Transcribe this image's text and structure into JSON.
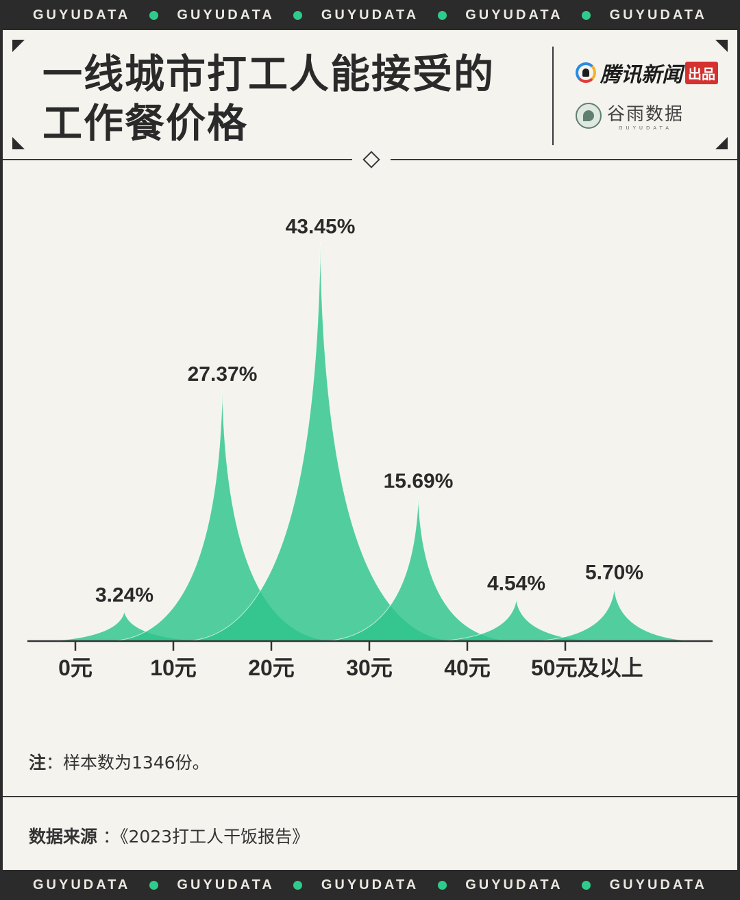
{
  "banner": {
    "items": [
      "GUYUDATA",
      "GUYUDATA",
      "GUYUDATA",
      "GUYUDATA",
      "GUYUDATA"
    ],
    "accent": "#2ecb8c"
  },
  "header": {
    "title_line1": "一线城市打工人能接受的",
    "title_line2": "工作餐价格",
    "logo_primary": "腾讯新闻",
    "logo_primary_badge": "出品",
    "logo_secondary": "谷雨数据",
    "logo_secondary_sub": "GUYUDATA"
  },
  "chart_data": {
    "type": "area",
    "categories": [
      "0元",
      "10元",
      "20元",
      "30元",
      "40元",
      "50元及以上"
    ],
    "values": [
      3.24,
      27.37,
      43.45,
      15.69,
      4.54,
      5.7
    ],
    "data_labels": [
      "3.24%",
      "27.37%",
      "43.45%",
      "15.69%",
      "4.54%",
      "5.70%"
    ],
    "unit": "%",
    "ylim": [
      0,
      45
    ],
    "grid": false,
    "fill_color": "#2ec48c"
  },
  "note": {
    "label": "注",
    "text": "：样本数为1346份。"
  },
  "source": {
    "label": "数据来源",
    "text": " ：《2023打工人干饭报告》"
  }
}
